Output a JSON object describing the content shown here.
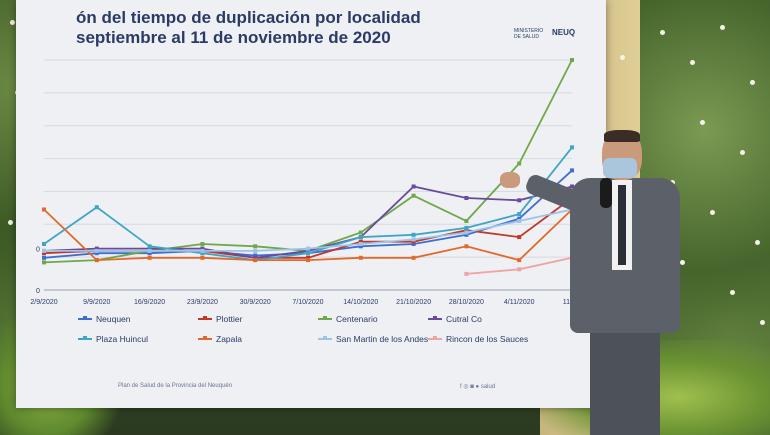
{
  "slide": {
    "title_line1": "ón del tiempo de duplicación por localidad",
    "title_line2": "septiembre al 11 de noviembre de 2020",
    "brand_small": "MINISTERIO DE SALUD",
    "brand_logo": "NEUQ",
    "footer_left": "Plan de Salud de la Provincia del Neuquén",
    "footer_right": "f ◎ ◙ ● salud"
  },
  "chart_data": {
    "type": "line",
    "categories": [
      "2/9/2020",
      "9/9/2020",
      "16/9/2020",
      "23/9/2020",
      "30/9/2020",
      "7/10/2020",
      "14/10/2020",
      "21/10/2020",
      "28/10/2020",
      "4/11/2020",
      "11/11/"
    ],
    "y_tick_labels": [
      "0",
      "0"
    ],
    "series": [
      {
        "name": "Neuquen",
        "color": "#3c6fd0",
        "values": [
          14,
          16,
          16,
          17,
          15,
          16,
          19,
          20,
          24,
          31,
          52
        ]
      },
      {
        "name": "Plottier",
        "color": "#c0392b",
        "values": [
          16,
          17,
          17,
          17,
          14,
          14,
          21,
          21,
          26,
          23,
          40
        ]
      },
      {
        "name": "Centenario",
        "color": "#6fa84a",
        "values": [
          12,
          13,
          17,
          20,
          19,
          17,
          25,
          41,
          30,
          55,
          100
        ]
      },
      {
        "name": "Cutral Co",
        "color": "#6c4a9b",
        "values": [
          17,
          18,
          18,
          18,
          14,
          17,
          23,
          45,
          40,
          39,
          45
        ]
      },
      {
        "name": "Plaza Huincul",
        "color": "#3ea6c4",
        "values": [
          20,
          36,
          19,
          16,
          13,
          16,
          23,
          24,
          27,
          33,
          62
        ]
      },
      {
        "name": "Zapala",
        "color": "#e2692b",
        "values": [
          35,
          13,
          14,
          14,
          13,
          13,
          14,
          14,
          19,
          13,
          35
        ]
      },
      {
        "name": "San Martin de los Andes",
        "color": "#9cc3e8",
        "values": [
          17,
          17,
          17,
          17,
          17,
          18,
          20,
          22,
          25,
          30,
          35
        ]
      },
      {
        "name": "Rincon de los Sauces",
        "color": "#f0a3a3",
        "values": [
          null,
          null,
          null,
          null,
          null,
          null,
          null,
          null,
          7,
          9,
          14
        ]
      }
    ],
    "ylim": [
      0,
      100
    ],
    "grid": true,
    "legend_placement": "bottom"
  }
}
